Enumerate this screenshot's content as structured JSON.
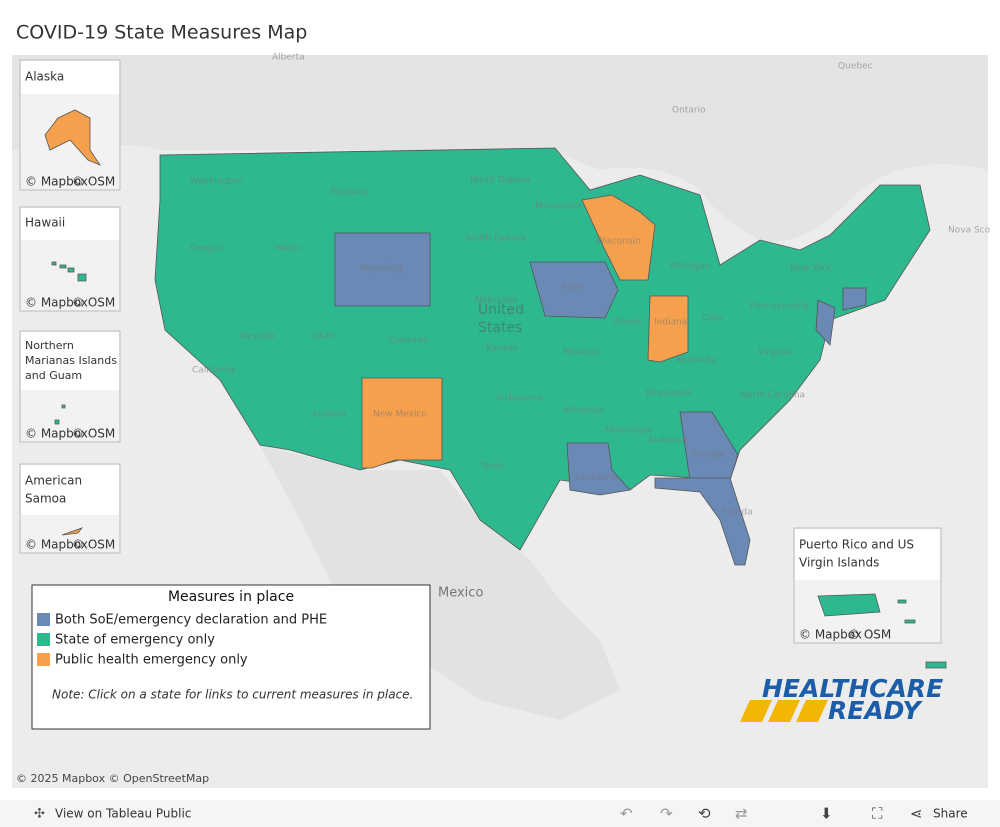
{
  "header": {
    "title": "COVID-19 State Measures Map"
  },
  "insets": [
    {
      "label": "Alaska",
      "attribution": [
        "© Mapbox",
        "© OSM"
      ]
    },
    {
      "label": "Hawaii",
      "attribution": [
        "© Mapbox",
        "© OSM"
      ]
    },
    {
      "label": [
        "Northern",
        "Marianas Islands",
        "and Guam"
      ],
      "attribution": [
        "© Mapbox",
        "© OSM"
      ]
    },
    {
      "label": [
        "American",
        "Samoa"
      ],
      "attribution": [
        "© Mapbox",
        "© OSM"
      ]
    },
    {
      "label": [
        "Puerto Rico and US",
        "Virgin Islands"
      ],
      "attribution": [
        "© Mapbox",
        "© OSM"
      ]
    }
  ],
  "map_labels": [
    "Alberta",
    "Quebec",
    "Ontario",
    "Nova Sco",
    "Mexico",
    "United",
    "States",
    "Washington",
    "Montana",
    "North Dakota",
    "Minnesota",
    "Oregon",
    "Idaho",
    "Wyoming",
    "South Dakota",
    "Wisconsin",
    "Michigan",
    "New York",
    "Nevada",
    "Utah",
    "Colorado",
    "Nebraska",
    "Iowa",
    "Illinois",
    "Indiana",
    "Ohio",
    "Pennsylvania",
    "California",
    "Kansas",
    "Missouri",
    "Kentucky",
    "Virginia",
    "Arizona",
    "New Mexico",
    "Oklahoma",
    "Arkansas",
    "Tennessee",
    "North Carolina",
    "Texas",
    "Louisiana",
    "Mississippi",
    "Alabama",
    "Georgia",
    "Florida"
  ],
  "legend": {
    "title": "Measures in place",
    "items": [
      {
        "label": "Both SoE/emergency declaration and PHE",
        "color": "#6a89b5"
      },
      {
        "label": "State of emergency only",
        "color": "#2db890"
      },
      {
        "label": "Public health emergency only",
        "color": "#f5a04d"
      }
    ],
    "note": "Note: Click on a state for links to current measures in place."
  },
  "logo": {
    "line1": "HEALTHCARE",
    "line2": "READY"
  },
  "attribution": "© 2025 Mapbox  © OpenStreetMap",
  "toolbar": {
    "view": "View on Tableau Public",
    "share": "Share"
  }
}
